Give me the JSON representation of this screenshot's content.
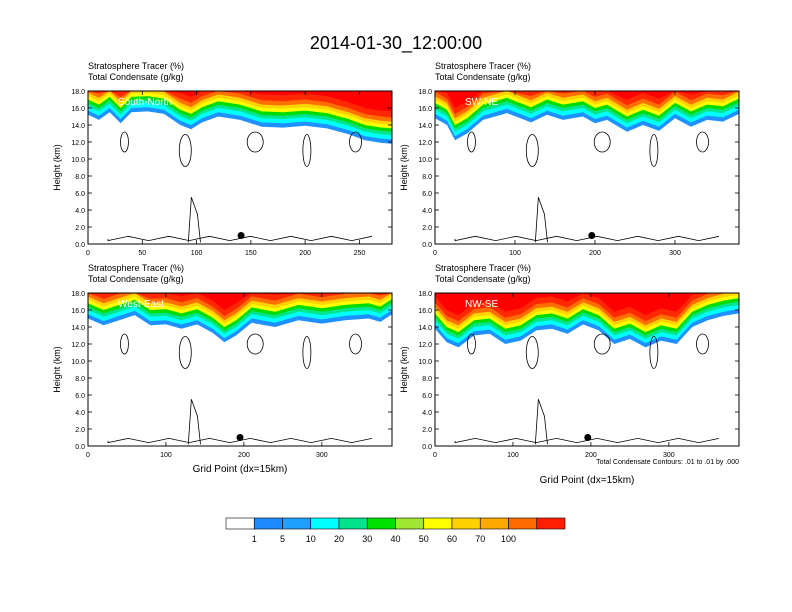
{
  "title": "2014-01-30_12:00:00",
  "colors": {
    "levels": [
      "#ffffff",
      "#1e90ff",
      "#1ea0ff",
      "#00ffff",
      "#00e68c",
      "#00dc00",
      "#a0e632",
      "#ffff00",
      "#ffd200",
      "#ffaa00",
      "#ff6e00",
      "#ff2800",
      "#ff0000"
    ],
    "bar": [
      "#ffffff",
      "#1e8cff",
      "#1ea0ff",
      "#00ffff",
      "#00e28c",
      "#00e100",
      "#a0e632",
      "#ffff00",
      "#ffd000",
      "#ffa800",
      "#ff6a00",
      "#ff1e00"
    ]
  },
  "colorbar": {
    "labels": [
      "1",
      "5",
      "10",
      "20",
      "30",
      "40",
      "50",
      "60",
      "70",
      "100"
    ]
  },
  "contour_note": "Total Condensate Contours: .01 to .01 by .000",
  "chart_data": [
    {
      "type": "heatmap",
      "subtitle_lines": [
        "Stratosphere Tracer   (%)",
        "Total Condensate   (g/kg)"
      ],
      "panel_label": "South-North",
      "ylabel": "Height (km)",
      "xlabel": "",
      "xlim": [
        0,
        280
      ],
      "ylim": [
        0,
        18
      ],
      "xticks": [
        0,
        50,
        100,
        150,
        200,
        250
      ],
      "yticks": [
        "0.0",
        "2.0",
        "4.0",
        "6.0",
        "8.0",
        "10.0",
        "12.0",
        "14.0",
        "16.0",
        "18.0"
      ],
      "marker_x": 141,
      "marker_y": 1.0,
      "cloud_top": [
        [
          0,
          15.2
        ],
        [
          10,
          14.6
        ],
        [
          20,
          15.5
        ],
        [
          30,
          14.2
        ],
        [
          40,
          15.5
        ],
        [
          55,
          15.6
        ],
        [
          70,
          15.3
        ],
        [
          85,
          14.0
        ],
        [
          95,
          13.5
        ],
        [
          105,
          14.3
        ],
        [
          120,
          15.0
        ],
        [
          140,
          14.6
        ],
        [
          160,
          13.8
        ],
        [
          180,
          13.7
        ],
        [
          200,
          13.9
        ],
        [
          220,
          13.6
        ],
        [
          240,
          12.9
        ],
        [
          255,
          12.2
        ],
        [
          270,
          11.9
        ],
        [
          280,
          11.8
        ]
      ]
    },
    {
      "type": "heatmap",
      "subtitle_lines": [
        "Stratosphere Tracer   (%)",
        "Total Condensate   (g/kg)"
      ],
      "panel_label": "SW-NE",
      "ylabel": "Height (km)",
      "xlabel": "",
      "xlim": [
        0,
        380
      ],
      "ylim": [
        0,
        18
      ],
      "xticks": [
        0,
        100,
        200,
        300
      ],
      "yticks": [
        "0.0",
        "2.0",
        "4.0",
        "6.0",
        "8.0",
        "10.0",
        "12.0",
        "14.0",
        "16.0",
        "18.0"
      ],
      "marker_x": 196,
      "marker_y": 1.0,
      "cloud_top": [
        [
          0,
          14.8
        ],
        [
          15,
          14.0
        ],
        [
          25,
          12.2
        ],
        [
          40,
          13.0
        ],
        [
          60,
          14.6
        ],
        [
          90,
          15.4
        ],
        [
          120,
          14.3
        ],
        [
          140,
          15.2
        ],
        [
          160,
          14.6
        ],
        [
          185,
          15.0
        ],
        [
          200,
          14.2
        ],
        [
          215,
          14.6
        ],
        [
          240,
          13.2
        ],
        [
          260,
          14.0
        ],
        [
          280,
          13.3
        ],
        [
          300,
          14.8
        ],
        [
          320,
          13.8
        ],
        [
          340,
          14.6
        ],
        [
          360,
          14.4
        ],
        [
          380,
          15.3
        ]
      ]
    },
    {
      "type": "heatmap",
      "subtitle_lines": [
        "Stratosphere Tracer   (%)",
        "Total Condensate   (g/kg)"
      ],
      "panel_label": "West-East",
      "ylabel": "Height (km)",
      "xlabel": "Grid Point (dx=15km)",
      "xlim": [
        0,
        390
      ],
      "ylim": [
        0,
        18
      ],
      "xticks": [
        0,
        100,
        200,
        300
      ],
      "yticks": [
        "0.0",
        "2.0",
        "4.0",
        "6.0",
        "8.0",
        "10.0",
        "12.0",
        "14.0",
        "16.0",
        "18.0"
      ],
      "marker_x": 195,
      "marker_y": 1.0,
      "cloud_top": [
        [
          0,
          15.0
        ],
        [
          20,
          14.2
        ],
        [
          40,
          14.8
        ],
        [
          60,
          15.4
        ],
        [
          80,
          14.2
        ],
        [
          100,
          14.3
        ],
        [
          120,
          13.8
        ],
        [
          140,
          14.3
        ],
        [
          160,
          13.3
        ],
        [
          175,
          12.2
        ],
        [
          190,
          13.0
        ],
        [
          210,
          14.5
        ],
        [
          240,
          14.0
        ],
        [
          270,
          14.8
        ],
        [
          300,
          14.4
        ],
        [
          330,
          14.8
        ],
        [
          360,
          15.0
        ],
        [
          375,
          14.6
        ],
        [
          390,
          15.5
        ]
      ]
    },
    {
      "type": "heatmap",
      "subtitle_lines": [
        "Stratosphere Tracer   (%)",
        "Total Condensate   (g/kg)"
      ],
      "panel_label": "NW-SE",
      "ylabel": "Height (km)",
      "xlabel": "Grid Point (dx=15km)",
      "xlim": [
        0,
        390
      ],
      "ylim": [
        0,
        18
      ],
      "xticks": [
        0,
        100,
        200,
        300
      ],
      "yticks": [
        "0.0",
        "2.0",
        "4.0",
        "6.0",
        "8.0",
        "10.0",
        "12.0",
        "14.0",
        "16.0",
        "18.0"
      ],
      "marker_x": 196,
      "marker_y": 1.0,
      "cloud_top": [
        [
          0,
          13.8
        ],
        [
          15,
          12.2
        ],
        [
          30,
          11.6
        ],
        [
          50,
          13.0
        ],
        [
          70,
          13.2
        ],
        [
          90,
          12.0
        ],
        [
          110,
          12.4
        ],
        [
          130,
          13.6
        ],
        [
          150,
          13.8
        ],
        [
          170,
          13.2
        ],
        [
          190,
          14.3
        ],
        [
          210,
          13.6
        ],
        [
          230,
          12.0
        ],
        [
          250,
          12.6
        ],
        [
          270,
          11.6
        ],
        [
          290,
          12.4
        ],
        [
          310,
          12.0
        ],
        [
          330,
          14.0
        ],
        [
          350,
          14.8
        ],
        [
          370,
          15.3
        ],
        [
          390,
          15.6
        ]
      ]
    }
  ]
}
